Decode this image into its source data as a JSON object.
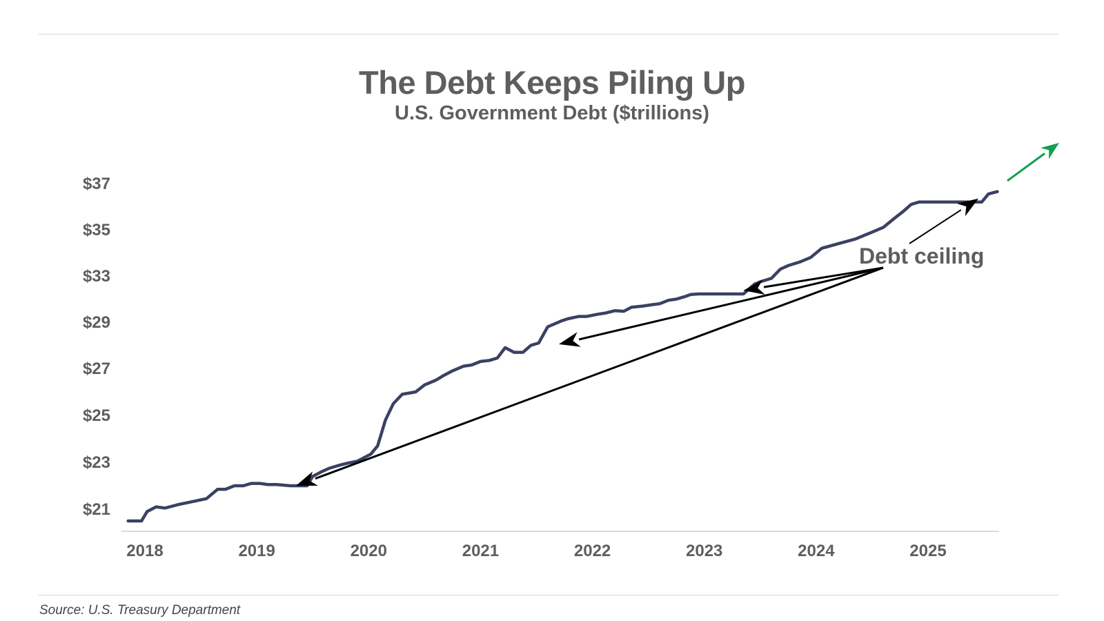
{
  "title": "The Debt Keeps Piling Up",
  "subtitle": "U.S. Government Debt ($trillions)",
  "source": "Source: U.S. Treasury Department",
  "colors": {
    "line": "#3b4163",
    "text": "#5e5e5e",
    "arrow": "#000000",
    "trend_arrow": "#12a04e",
    "axis": "#cfcfcf"
  },
  "chart_data": {
    "type": "line",
    "title": "The Debt Keeps Piling Up",
    "subtitle": "U.S. Government Debt ($trillions)",
    "xlabel": "",
    "ylabel": "",
    "x_ticks": [
      "2018",
      "2019",
      "2020",
      "2021",
      "2022",
      "2023",
      "2024",
      "2025"
    ],
    "y_tick_labels": [
      "$21",
      "$23",
      "$25",
      "$27",
      "$29",
      "$33",
      "$35",
      "$37"
    ],
    "xlim": [
      2017.8,
      2025.8
    ],
    "grid": false,
    "series": [
      {
        "x": [
          2017.85,
          2017.97,
          2018.02,
          2018.1,
          2018.18,
          2018.3,
          2018.4,
          2018.55,
          2018.65,
          2018.72,
          2018.8,
          2018.88,
          2018.95,
          2019.03,
          2019.1,
          2019.18,
          2019.3,
          2019.45,
          2019.5,
          2019.58,
          2019.65,
          2019.72,
          2019.8,
          2019.9,
          2020.02,
          2020.08,
          2020.15,
          2020.22,
          2020.3,
          2020.42,
          2020.5,
          2020.6,
          2020.67,
          2020.75,
          2020.85,
          2020.92,
          2021.0,
          2021.08,
          2021.15,
          2021.22,
          2021.3,
          2021.38,
          2021.45,
          2021.52,
          2021.6,
          2021.72,
          2021.78,
          2021.88,
          2021.95,
          2022.05,
          2022.12,
          2022.2,
          2022.28,
          2022.35,
          2022.45,
          2022.52,
          2022.6,
          2022.68,
          2022.75,
          2022.82,
          2022.88,
          2022.95,
          2023.05,
          2023.2,
          2023.35,
          2023.45,
          2023.5,
          2023.6,
          2023.68,
          2023.75,
          2023.85,
          2023.95,
          2024.05,
          2024.2,
          2024.35,
          2024.5,
          2024.6,
          2024.7,
          2024.78,
          2024.85,
          2024.92,
          2025.0,
          2025.15,
          2025.3,
          2025.48,
          2025.54,
          2025.62
        ],
        "y": [
          20.5,
          20.5,
          20.9,
          21.1,
          21.05,
          21.2,
          21.3,
          21.45,
          21.85,
          21.85,
          22.0,
          22.0,
          22.1,
          22.1,
          22.05,
          22.05,
          22.0,
          22.0,
          22.4,
          22.6,
          22.75,
          22.85,
          22.95,
          23.05,
          23.35,
          23.7,
          24.8,
          25.5,
          25.9,
          26.0,
          26.3,
          26.5,
          26.7,
          26.9,
          27.1,
          27.15,
          27.3,
          27.35,
          27.45,
          27.9,
          27.7,
          27.7,
          28.0,
          28.1,
          28.8,
          29.1,
          29.3,
          29.5,
          29.5,
          29.7,
          29.8,
          30.0,
          29.95,
          30.3,
          30.4,
          30.5,
          30.6,
          30.9,
          31.0,
          31.2,
          31.4,
          31.45,
          31.45,
          31.45,
          31.45,
          32.3,
          32.5,
          32.8,
          33.3,
          33.45,
          33.6,
          33.8,
          34.2,
          34.4,
          34.6,
          34.9,
          35.1,
          35.5,
          35.8,
          36.1,
          36.2,
          36.2,
          36.2,
          36.2,
          36.2,
          36.55,
          36.65
        ]
      }
    ],
    "annotations": [
      {
        "text": "Debt ceiling",
        "arrows_to": [
          [
            2019.35,
            22.0
          ],
          [
            2021.7,
            28.05
          ],
          [
            2023.35,
            31.75
          ],
          [
            2025.45,
            36.35
          ]
        ]
      }
    ],
    "trend_arrow": "up-right"
  }
}
